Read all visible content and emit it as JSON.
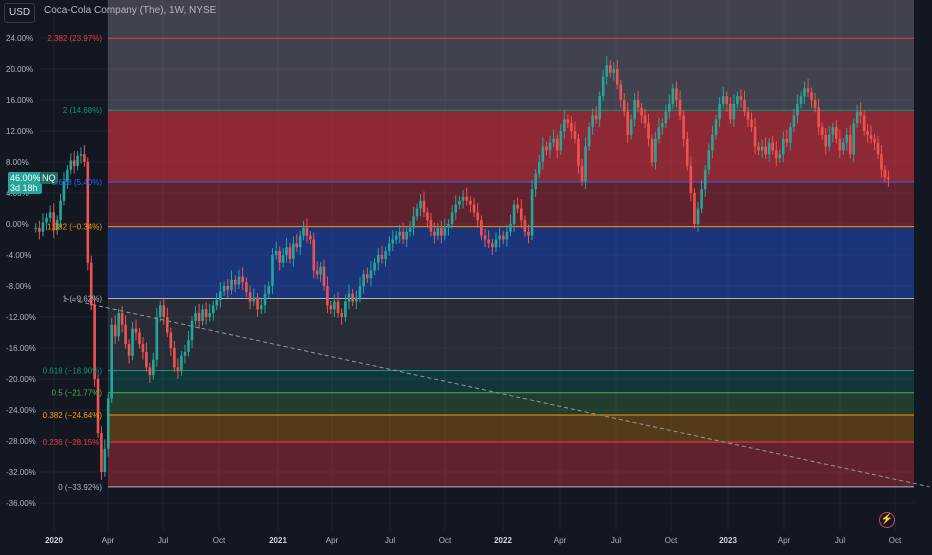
{
  "header": {
    "currency": "USD",
    "title": "Coca-Cola Company (The), 1W, NYSE"
  },
  "badges": {
    "price_top": "46.00%",
    "price_bottom": "3d 18h",
    "pct": "NQ"
  },
  "colors": {
    "background": "#131722",
    "up": "#26a69a",
    "down": "#ef5350"
  },
  "chart_data": {
    "type": "candlestick",
    "y_axis": {
      "unit": "%",
      "ylim": [
        -38,
        27
      ],
      "ticks": [
        "24.00%",
        "20.00%",
        "16.00%",
        "12.00%",
        "8.00%",
        "4.00%",
        "0.00%",
        "-4.00%",
        "-8.00%",
        "-12.00%",
        "-16.00%",
        "-20.00%",
        "-24.00%",
        "-28.00%",
        "-32.00%",
        "-36.00%"
      ],
      "tick_values": [
        24,
        20,
        16,
        12,
        8,
        4,
        0,
        -4,
        -8,
        -12,
        -16,
        -20,
        -24,
        -28,
        -32,
        -36
      ]
    },
    "x_axis": {
      "ticks": [
        "2020",
        "Apr",
        "Jul",
        "Oct",
        "2021",
        "Apr",
        "Jul",
        "Oct",
        "2022",
        "Apr",
        "Jul",
        "Oct",
        "2023",
        "Apr",
        "Jul",
        "Oct"
      ],
      "tick_values": [
        2020.0,
        2020.25,
        2020.5,
        2020.75,
        2021.0,
        2021.25,
        2021.5,
        2021.75,
        2022.0,
        2022.25,
        2022.5,
        2022.75,
        2023.0,
        2023.25,
        2023.5,
        2023.75
      ]
    },
    "x_range": [
      1999.75,
      2023.9
    ],
    "fib_levels": [
      {
        "label": "0 (−33.92%)",
        "value": -33.92,
        "color": "#b2b5be"
      },
      {
        "label": "0.236 (−28.15%)",
        "value": -28.15,
        "color": "#f23645"
      },
      {
        "label": "0.382 (−24.64%)",
        "value": -24.64,
        "color": "#ff9800"
      },
      {
        "label": "0.5 (−21.77%)",
        "value": -21.77,
        "color": "#4caf50"
      },
      {
        "label": "0.618 (−18.90%)",
        "value": -18.9,
        "color": "#089981"
      },
      {
        "label": "1 (−9.62%)",
        "value": -9.62,
        "color": "#b2b5be"
      },
      {
        "label": "1.382 (−0.34%)",
        "value": -0.34,
        "color": "#ff9800"
      },
      {
        "label": "1.618 (5.40%)",
        "value": 5.4,
        "color": "#2962ff"
      },
      {
        "label": "2 (14.68%)",
        "value": 14.68,
        "color": "#089981"
      },
      {
        "label": "2.382 (23.97%)",
        "value": 23.97,
        "color": "#f23645"
      }
    ],
    "trendline": {
      "x": [
        2020.05,
        2023.9
      ],
      "y": [
        -9.62,
        -33.9
      ]
    },
    "series": [
      {
        "values": [
          -0.5,
          -1.0,
          0.2,
          0.8,
          1.5,
          -0.8,
          0.5,
          3.0,
          5.5,
          7.0,
          8.2,
          7.5,
          8.8,
          9.0,
          8.0,
          -5.0,
          -10.5,
          -20.0,
          -27.0,
          -32.0,
          -29.0,
          -22.5,
          -13.0,
          -14.5,
          -11.5,
          -13.0,
          -15.5,
          -17.0,
          -13.5,
          -14.0,
          -15.5,
          -16.5,
          -18.5,
          -19.5,
          -17.5,
          -12.0,
          -10.5,
          -12.0,
          -14.0,
          -16.0,
          -18.5,
          -19.0,
          -17.0,
          -16.5,
          -15.0,
          -12.5,
          -11.5,
          -12.5,
          -11.0,
          -12.0,
          -11.5,
          -10.5,
          -9.8,
          -8.7,
          -8.0,
          -8.5,
          -7.2,
          -7.8,
          -6.8,
          -7.5,
          -8.8,
          -10.0,
          -9.5,
          -11.0,
          -10.5,
          -9.0,
          -8.0,
          -4.0,
          -3.5,
          -5.0,
          -4.0,
          -3.0,
          -4.5,
          -2.5,
          -3.0,
          -1.5,
          -0.5,
          -1.5,
          -2.0,
          -6.0,
          -6.5,
          -5.5,
          -8.0,
          -10.5,
          -11.0,
          -10.0,
          -11.5,
          -12.0,
          -10.0,
          -9.0,
          -10.0,
          -9.5,
          -8.0,
          -6.5,
          -7.0,
          -6.0,
          -5.0,
          -4.0,
          -4.5,
          -3.5,
          -2.5,
          -2.0,
          -1.5,
          -1.0,
          -2.0,
          -1.0,
          -0.5,
          1.0,
          2.0,
          3.0,
          1.5,
          0.5,
          -1.0,
          -1.5,
          -0.5,
          -1.5,
          -0.5,
          0.0,
          1.5,
          2.5,
          3.0,
          3.5,
          3.0,
          2.5,
          1.5,
          0.5,
          -1.5,
          -2.0,
          -2.5,
          -3.0,
          -2.0,
          -1.5,
          -2.0,
          -1.0,
          0.0,
          2.5,
          2.0,
          0.5,
          -1.0,
          -1.5,
          4.5,
          6.5,
          8.0,
          10.0,
          9.5,
          10.5,
          11.0,
          9.5,
          12.0,
          13.5,
          13.0,
          12.0,
          11.0,
          7.5,
          5.5,
          10.0,
          12.5,
          14.0,
          13.5,
          16.5,
          19.0,
          20.5,
          19.5,
          20.0,
          18.0,
          16.0,
          14.5,
          11.5,
          13.5,
          16.0,
          15.0,
          14.0,
          13.0,
          11.0,
          8.0,
          11.0,
          12.5,
          13.0,
          14.5,
          15.5,
          17.5,
          16.0,
          14.0,
          11.0,
          7.5,
          4.0,
          0.0,
          2.0,
          4.5,
          7.0,
          9.5,
          11.5,
          13.5,
          15.5,
          16.5,
          15.5,
          13.5,
          15.5,
          16.5,
          16.0,
          14.5,
          13.5,
          12.5,
          10.0,
          9.5,
          10.0,
          9.0,
          10.5,
          9.5,
          8.5,
          9.0,
          11.0,
          10.5,
          12.5,
          14.0,
          15.5,
          16.5,
          17.5,
          17.0,
          16.0,
          15.0,
          12.5,
          11.5,
          10.0,
          11.5,
          12.5,
          11.0,
          9.5,
          10.5,
          11.5,
          9.0,
          13.0,
          14.5,
          14.0,
          12.0,
          11.5,
          11.0,
          10.5,
          9.0,
          7.0,
          6.0,
          5.8
        ]
      }
    ]
  }
}
